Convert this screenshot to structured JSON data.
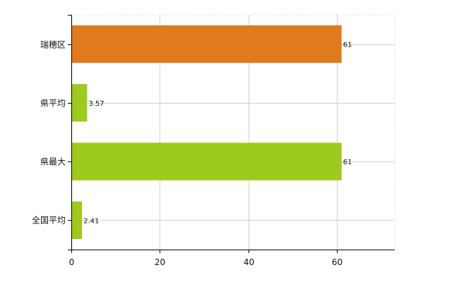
{
  "chart_data": {
    "type": "bar",
    "orientation": "horizontal",
    "categories": [
      "瑞穂区",
      "県平均",
      "県最大",
      "全国平均"
    ],
    "values": [
      61,
      3.57,
      61,
      2.41
    ],
    "value_labels": [
      "61",
      "3.57",
      "61",
      "2.41"
    ],
    "colors": [
      "#e07a1f",
      "#9ec91e",
      "#9ec91e",
      "#9ec91e"
    ],
    "xlim": [
      0,
      73
    ],
    "xticks": [
      0,
      20,
      40,
      60
    ],
    "grid": true,
    "legend": "none",
    "title": "",
    "xlabel": "",
    "ylabel": ""
  }
}
